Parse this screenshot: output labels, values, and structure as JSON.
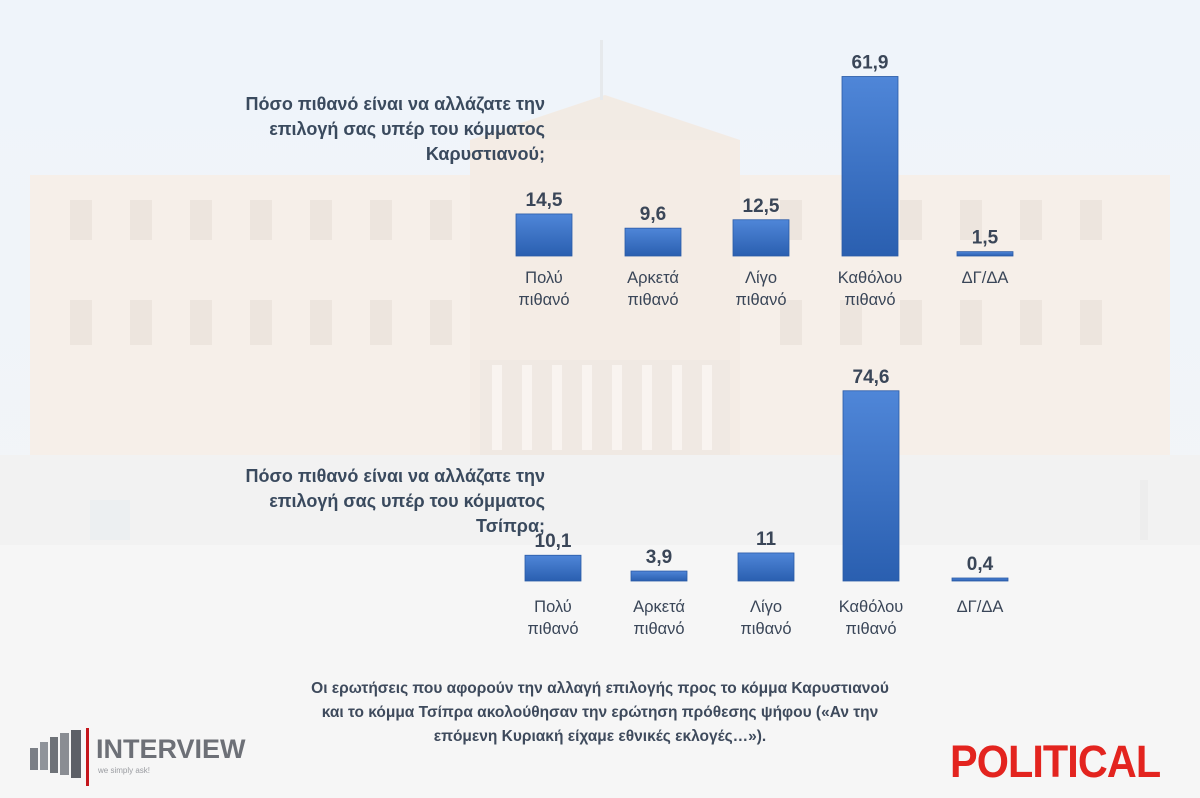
{
  "chart_data": [
    {
      "type": "bar",
      "title": "Πόσο πιθανό είναι να αλλάζατε την επιλογή σας υπέρ του κόμματος Καρυστιανού;",
      "title_lines": [
        "Πόσο πιθανό είναι να αλλάζατε την",
        "επιλογή σας υπέρ του κόμματος",
        "Καρυστιανού;"
      ],
      "categories": [
        "Πολύ πιθανό",
        "Αρκετά πιθανό",
        "Λίγο πιθανό",
        "Καθόλου πιθανό",
        "ΔΓ/ΔΑ"
      ],
      "category_lines": [
        [
          "Πολύ",
          "πιθανό"
        ],
        [
          "Αρκετά",
          "πιθανό"
        ],
        [
          "Λίγο",
          "πιθανό"
        ],
        [
          "Καθόλου",
          "πιθανό"
        ],
        [
          "ΔΓ/ΔΑ"
        ]
      ],
      "values": [
        14.5,
        9.6,
        12.5,
        61.9,
        1.5
      ],
      "value_labels": [
        "14,5",
        "9,6",
        "12,5",
        "61,9",
        "1,5"
      ],
      "xlabel": "",
      "ylabel": "",
      "grid": false
    },
    {
      "type": "bar",
      "title": "Πόσο πιθανό είναι να αλλάζατε την επιλογή σας υπέρ του κόμματος Τσίπρα;",
      "title_lines": [
        "Πόσο πιθανό είναι να αλλάζατε την",
        "επιλογή σας υπέρ του κόμματος",
        "Τσίπρα;"
      ],
      "categories": [
        "Πολύ πιθανό",
        "Αρκετά πιθανό",
        "Λίγο πιθανό",
        "Καθόλου πιθανό",
        "ΔΓ/ΔΑ"
      ],
      "category_lines": [
        [
          "Πολύ",
          "πιθανό"
        ],
        [
          "Αρκετά",
          "πιθανό"
        ],
        [
          "Λίγο",
          "πιθανό"
        ],
        [
          "Καθόλου",
          "πιθανό"
        ],
        [
          "ΔΓ/ΔΑ"
        ]
      ],
      "values": [
        10.1,
        3.9,
        11,
        74.6,
        0.4
      ],
      "value_labels": [
        "10,1",
        "3,9",
        "11",
        "74,6",
        "0,4"
      ],
      "xlabel": "",
      "ylabel": "",
      "grid": false
    }
  ],
  "footnote": {
    "lines": [
      "Οι ερωτήσεις που αφορούν την αλλαγή επιλογής προς το κόμμα Καρυστιανού",
      "και το κόμμα Τσίπρα ακολούθησαν την ερώτηση πρόθεσης ψήφου («Αν την",
      "επόμενη Κυριακή είχαμε εθνικές εκλογές…»)."
    ]
  },
  "logos": {
    "interview": "INTERVIEW",
    "interview_tagline": "we simply ask!",
    "political": "POLITICAL"
  },
  "colors": {
    "bar_top": "#4f86d8",
    "bar_bottom": "#2a5fb0",
    "label_text": "#3a4658",
    "interview_red": "#c4161c",
    "political_red": "#e3241f"
  }
}
